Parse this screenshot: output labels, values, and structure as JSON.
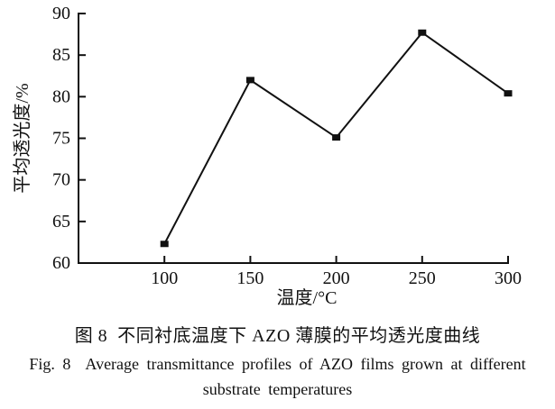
{
  "figure": {
    "caption_zh": "图 8  不同衬底温度下 AZO 薄膜的平均透光度曲线",
    "caption_en_line1": "Fig. 8  Average transmittance profiles of AZO films grown at different",
    "caption_en_line2": "substrate temperatures"
  },
  "chart_data": {
    "type": "line",
    "series_name": "average-transmittance",
    "x": [
      100,
      150,
      200,
      250,
      300
    ],
    "values": [
      62.3,
      82.0,
      75.1,
      87.7,
      80.4
    ],
    "xticks": [
      100,
      150,
      200,
      250,
      300
    ],
    "yticks": [
      60,
      65,
      70,
      75,
      80,
      85,
      90
    ],
    "xlim": [
      50,
      300
    ],
    "ylim": [
      60,
      90
    ],
    "xlabel": "温度/°C",
    "ylabel": "平均透光度/%",
    "marker": "square",
    "grid": false,
    "legend": "none",
    "ink_color": "#111111",
    "background_color": "#ffffff"
  }
}
